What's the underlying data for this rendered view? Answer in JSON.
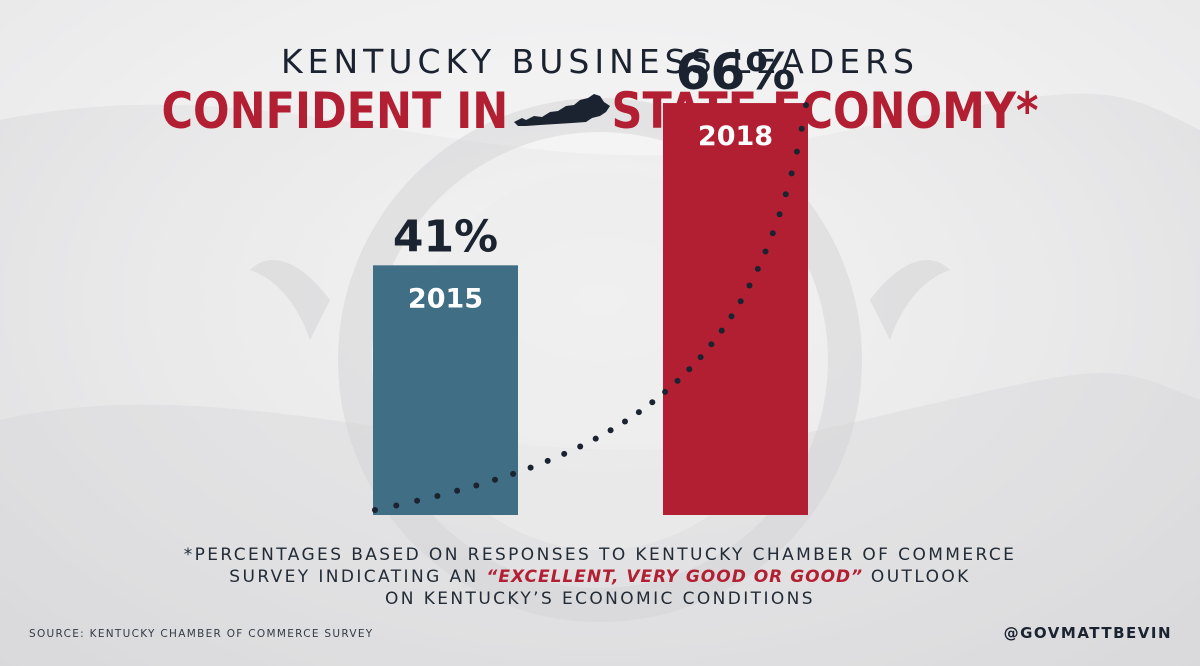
{
  "header": {
    "title_top": "KENTUCKY BUSINESS LEADERS",
    "title_main_left": "CONFIDENT IN",
    "title_main_right": "STATE ECONOMY*",
    "map_icon": "kentucky-state-icon"
  },
  "chart_data": {
    "type": "bar",
    "categories": [
      "2015",
      "2018"
    ],
    "values": [
      41,
      66
    ],
    "value_labels": [
      "41%",
      "66%"
    ],
    "ylim": [
      0,
      70
    ],
    "colors": [
      "#3f6e85",
      "#b31f32"
    ],
    "trend_line": "dotted-curve",
    "grid": false
  },
  "footnote": {
    "line1": "*PERCENTAGES BASED ON RESPONSES TO KENTUCKY CHAMBER OF COMMERCE",
    "line2_pre": "SURVEY INDICATING AN ",
    "line2_highlight": "“EXCELLENT, VERY GOOD OR GOOD”",
    "line2_post": " OUTLOOK",
    "line3": "ON KENTUCKY’S ECONOMIC CONDITIONS"
  },
  "source": "SOURCE: KENTUCKY CHAMBER OF COMMERCE SURVEY",
  "handle": "@GOVMATTBEVIN",
  "colors": {
    "accent_red": "#b31f32",
    "navy": "#1b2330",
    "bar_blue": "#3f6e85"
  }
}
